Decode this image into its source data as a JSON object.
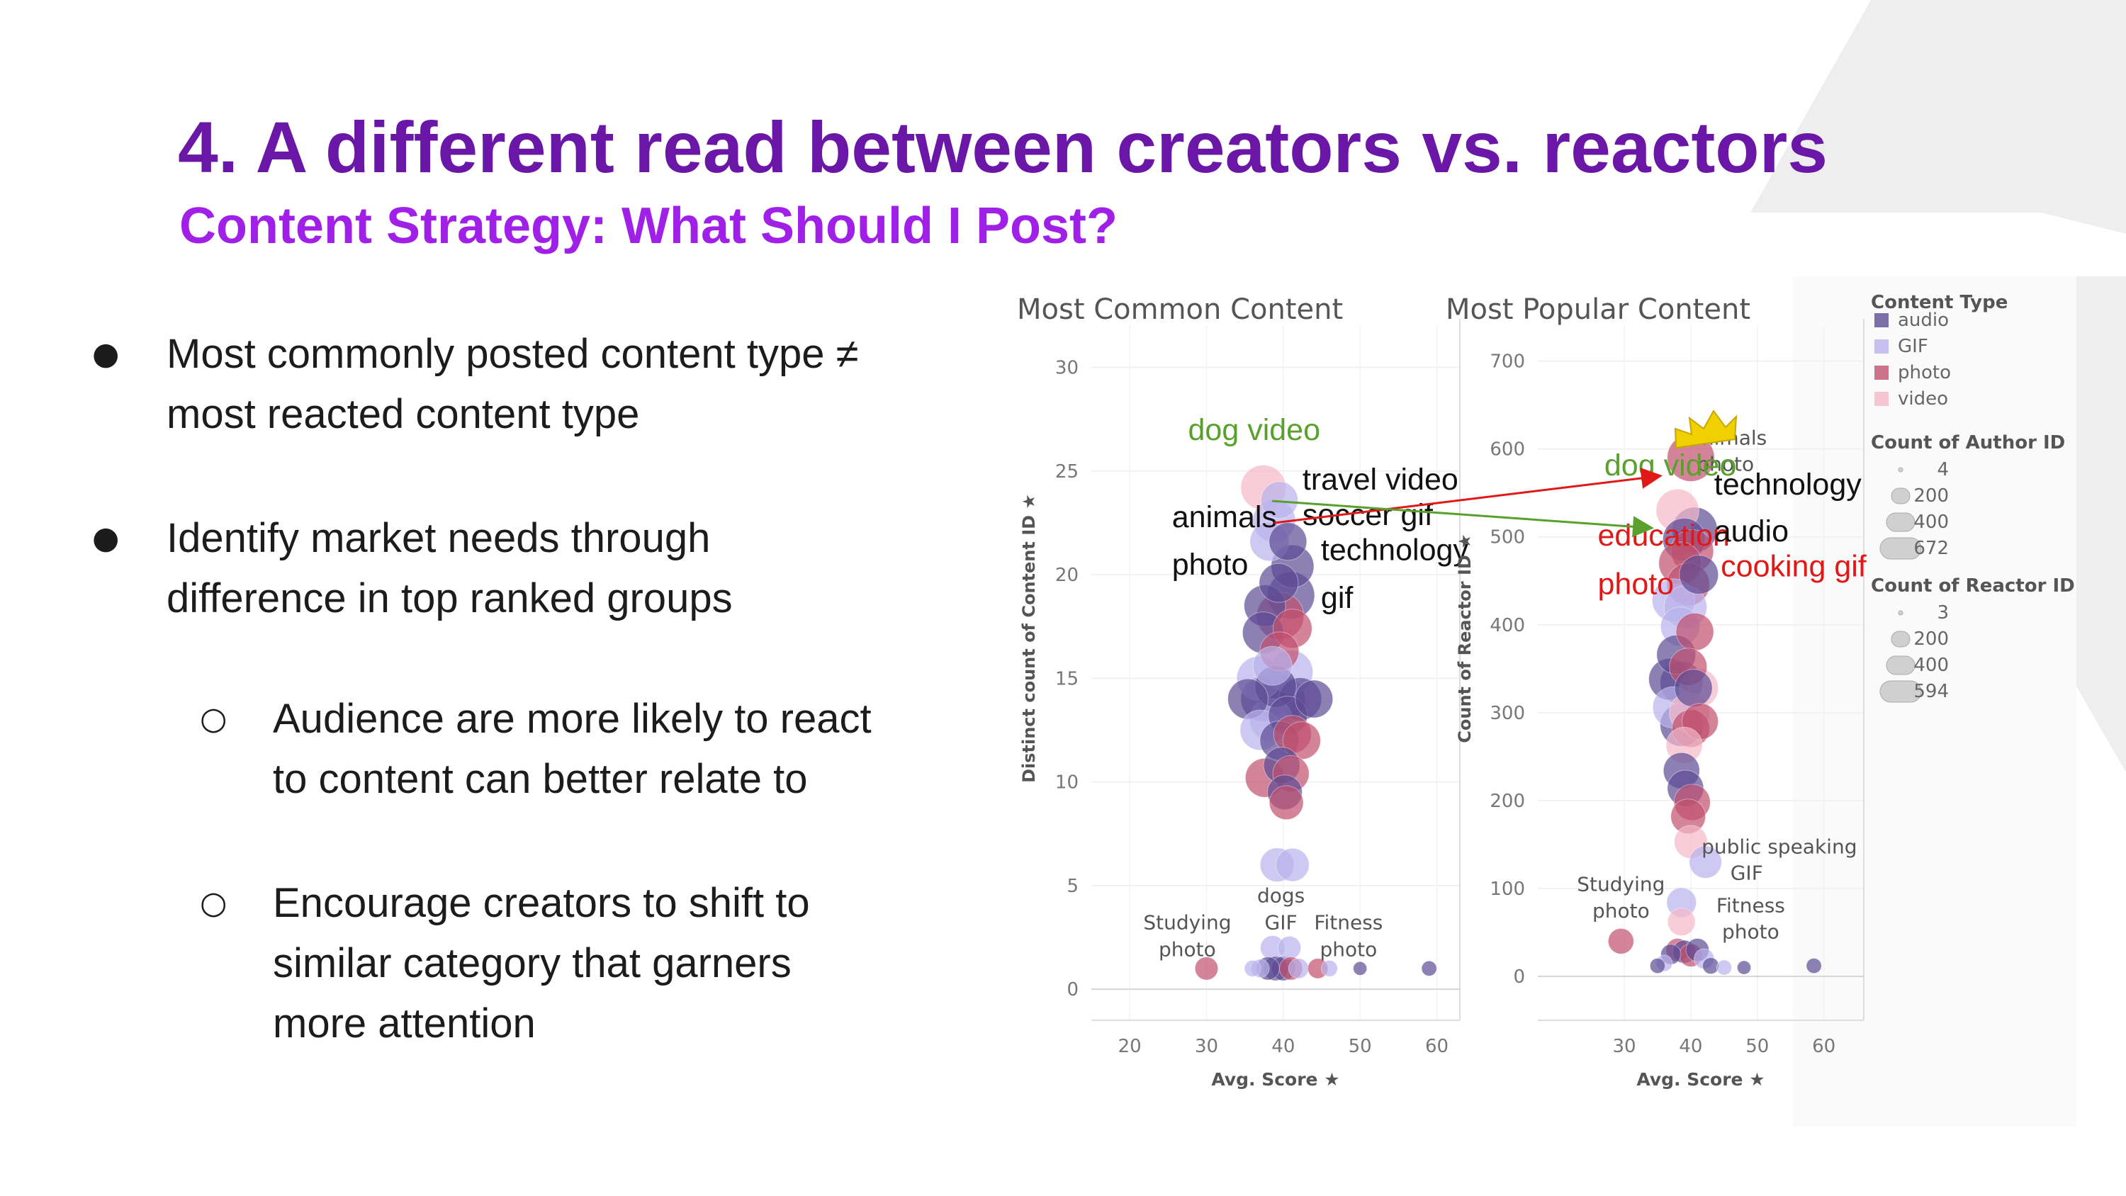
{
  "slide": {
    "title": "4. A different read between creators vs. reactors",
    "subtitle": "Content Strategy: What Should I Post?"
  },
  "bullets": [
    {
      "marker": "●",
      "lines": [
        "Most commonly posted content type ≠",
        "most reacted content type"
      ]
    },
    {
      "marker": "●",
      "lines": [
        "Identify market needs through",
        "difference in top ranked groups"
      ]
    },
    {
      "marker": "○",
      "lines": [
        "Audience are more likely to react",
        "to content can better relate to"
      ]
    },
    {
      "marker": "○",
      "lines": [
        "Encourage creators to shift to",
        "similar category that garners",
        "more attention"
      ]
    }
  ],
  "colors": {
    "title": "#6a16a6",
    "subtitle": "#a020e8",
    "audio": "#5c4c94",
    "gif": "#b9b2ec",
    "photo": "#c0506e",
    "video": "#f5b8c8",
    "annot_green": "#5aa02c",
    "annot_red": "#e01818",
    "crown": "#f0d000"
  },
  "chart_data": [
    {
      "type": "scatter",
      "title": "Most Common Content",
      "xlabel": "Avg. Score",
      "ylabel": "Distinct count of Content ID",
      "xlim": [
        15,
        63
      ],
      "ylim": [
        -1.5,
        32
      ],
      "x_ticks": [
        20,
        30,
        40,
        50,
        60
      ],
      "y_ticks": [
        0,
        5,
        10,
        15,
        20,
        25,
        30
      ],
      "grid": true,
      "size_encoding": "Count of Author ID",
      "points": [
        {
          "x": 37.4,
          "y": 24.2,
          "s": 340,
          "t": "video"
        },
        {
          "x": 39.5,
          "y": 23.6,
          "s": 210,
          "t": "gif"
        },
        {
          "x": 38.8,
          "y": 22.6,
          "s": 300,
          "t": "gif"
        },
        {
          "x": 40.6,
          "y": 21.6,
          "s": 220,
          "t": "audio"
        },
        {
          "x": 38.2,
          "y": 21.6,
          "s": 240,
          "t": "gif"
        },
        {
          "x": 41.2,
          "y": 20.4,
          "s": 300,
          "t": "audio"
        },
        {
          "x": 39.4,
          "y": 19.6,
          "s": 240,
          "t": "audio"
        },
        {
          "x": 41.0,
          "y": 19.0,
          "s": 380,
          "t": "audio"
        },
        {
          "x": 37.6,
          "y": 18.5,
          "s": 280,
          "t": "audio"
        },
        {
          "x": 39.6,
          "y": 18.0,
          "s": 380,
          "t": "photo"
        },
        {
          "x": 41.2,
          "y": 17.4,
          "s": 240,
          "t": "photo"
        },
        {
          "x": 37.4,
          "y": 17.2,
          "s": 280,
          "t": "audio"
        },
        {
          "x": 39.5,
          "y": 16.3,
          "s": 240,
          "t": "photo"
        },
        {
          "x": 38.6,
          "y": 15.6,
          "s": 240,
          "t": "gif"
        },
        {
          "x": 41.0,
          "y": 15.3,
          "s": 320,
          "t": "gif"
        },
        {
          "x": 36.8,
          "y": 15.0,
          "s": 320,
          "t": "gif"
        },
        {
          "x": 39.0,
          "y": 14.6,
          "s": 280,
          "t": "audio"
        },
        {
          "x": 35.4,
          "y": 14.0,
          "s": 260,
          "t": "audio"
        },
        {
          "x": 37.4,
          "y": 14.0,
          "s": 340,
          "t": "audio"
        },
        {
          "x": 39.8,
          "y": 14.0,
          "s": 380,
          "t": "audio"
        },
        {
          "x": 42.2,
          "y": 14.0,
          "s": 300,
          "t": "audio"
        },
        {
          "x": 44.0,
          "y": 14.0,
          "s": 220,
          "t": "audio"
        },
        {
          "x": 38.4,
          "y": 13.0,
          "s": 300,
          "t": "gif"
        },
        {
          "x": 40.6,
          "y": 13.2,
          "s": 240,
          "t": "audio"
        },
        {
          "x": 37.0,
          "y": 12.5,
          "s": 260,
          "t": "gif"
        },
        {
          "x": 39.5,
          "y": 12.0,
          "s": 240,
          "t": "audio"
        },
        {
          "x": 41.2,
          "y": 12.3,
          "s": 220,
          "t": "photo"
        },
        {
          "x": 42.4,
          "y": 12.0,
          "s": 220,
          "t": "photo"
        },
        {
          "x": 39.8,
          "y": 10.8,
          "s": 200,
          "t": "audio"
        },
        {
          "x": 41.0,
          "y": 10.4,
          "s": 200,
          "t": "photo"
        },
        {
          "x": 37.6,
          "y": 10.2,
          "s": 240,
          "t": "photo"
        },
        {
          "x": 40.2,
          "y": 9.5,
          "s": 180,
          "t": "audio"
        },
        {
          "x": 40.4,
          "y": 9.0,
          "s": 170,
          "t": "photo"
        },
        {
          "x": 39.2,
          "y": 6.0,
          "s": 170,
          "t": "gif"
        },
        {
          "x": 41.2,
          "y": 6.0,
          "s": 160,
          "t": "gif"
        },
        {
          "x": 38.6,
          "y": 2.0,
          "s": 70,
          "t": "gif"
        },
        {
          "x": 40.8,
          "y": 2.0,
          "s": 60,
          "t": "gif"
        },
        {
          "x": 30.0,
          "y": 1.0,
          "s": 60,
          "t": "photo"
        },
        {
          "x": 36.0,
          "y": 1.0,
          "s": 20,
          "t": "gif"
        },
        {
          "x": 37.0,
          "y": 1.0,
          "s": 30,
          "t": "gif"
        },
        {
          "x": 38.0,
          "y": 1.0,
          "s": 60,
          "t": "audio"
        },
        {
          "x": 39.0,
          "y": 1.0,
          "s": 70,
          "t": "audio"
        },
        {
          "x": 40.0,
          "y": 1.0,
          "s": 70,
          "t": "audio"
        },
        {
          "x": 41.0,
          "y": 1.0,
          "s": 60,
          "t": "photo"
        },
        {
          "x": 42.0,
          "y": 1.0,
          "s": 40,
          "t": "gif"
        },
        {
          "x": 44.5,
          "y": 1.0,
          "s": 40,
          "t": "photo"
        },
        {
          "x": 46.0,
          "y": 1.0,
          "s": 20,
          "t": "gif"
        },
        {
          "x": 50.0,
          "y": 1.0,
          "s": 10,
          "t": "audio"
        },
        {
          "x": 59.0,
          "y": 1.0,
          "s": 15,
          "t": "audio"
        }
      ],
      "point_labels": [
        {
          "text": "dogs",
          "x": 39.7,
          "y": 4.2
        },
        {
          "text": "GIF",
          "x": 39.7,
          "y": 2.9
        },
        {
          "text": "Studying",
          "x": 27.5,
          "y": 2.9
        },
        {
          "text": "photo",
          "x": 27.5,
          "y": 1.6
        },
        {
          "text": "Fitness",
          "x": 48.5,
          "y": 2.9
        },
        {
          "text": "photo",
          "x": 48.5,
          "y": 1.6
        }
      ],
      "annotations": [
        {
          "text": "dog video",
          "x": 27.6,
          "y": 26.5,
          "color": "green"
        },
        {
          "text": "travel video",
          "x": 42.5,
          "y": 24.1,
          "color": "black"
        },
        {
          "text": "animals",
          "x": 25.5,
          "y": 22.3,
          "color": "black"
        },
        {
          "text": "soccer gif",
          "x": 42.5,
          "y": 22.4,
          "color": "black"
        },
        {
          "text": "technology",
          "x": 44.9,
          "y": 20.7,
          "color": "black"
        },
        {
          "text": "photo",
          "x": 25.5,
          "y": 20.0,
          "color": "black"
        },
        {
          "text": "gif",
          "x": 44.9,
          "y": 18.4,
          "color": "black"
        }
      ]
    },
    {
      "type": "scatter",
      "title": "Most Popular Content",
      "xlabel": "Avg. Score",
      "ylabel": "Count of Reactor ID",
      "xlim": [
        17,
        66
      ],
      "ylim": [
        -50,
        740
      ],
      "x_ticks": [
        30,
        40,
        50,
        60
      ],
      "y_ticks": [
        0,
        100,
        200,
        300,
        400,
        500,
        600,
        700
      ],
      "grid": true,
      "size_encoding": "Count of Reactor ID",
      "points": [
        {
          "x": 40.0,
          "y": 590,
          "s": 380,
          "t": "photo"
        },
        {
          "x": 38.0,
          "y": 530,
          "s": 300,
          "t": "video"
        },
        {
          "x": 40.6,
          "y": 508,
          "s": 340,
          "t": "audio"
        },
        {
          "x": 39.0,
          "y": 497,
          "s": 300,
          "t": "audio"
        },
        {
          "x": 40.2,
          "y": 484,
          "s": 300,
          "t": "photo"
        },
        {
          "x": 38.4,
          "y": 470,
          "s": 300,
          "t": "photo"
        },
        {
          "x": 41.2,
          "y": 457,
          "s": 240,
          "t": "audio"
        },
        {
          "x": 39.6,
          "y": 446,
          "s": 300,
          "t": "photo"
        },
        {
          "x": 37.4,
          "y": 428,
          "s": 300,
          "t": "gif"
        },
        {
          "x": 39.2,
          "y": 420,
          "s": 300,
          "t": "gif"
        },
        {
          "x": 38.4,
          "y": 398,
          "s": 240,
          "t": "gif"
        },
        {
          "x": 40.6,
          "y": 392,
          "s": 220,
          "t": "photo"
        },
        {
          "x": 37.8,
          "y": 366,
          "s": 240,
          "t": "audio"
        },
        {
          "x": 39.6,
          "y": 352,
          "s": 220,
          "t": "photo"
        },
        {
          "x": 36.8,
          "y": 338,
          "s": 280,
          "t": "audio"
        },
        {
          "x": 38.6,
          "y": 334,
          "s": 300,
          "t": "audio"
        },
        {
          "x": 40.4,
          "y": 328,
          "s": 220,
          "t": "audio"
        },
        {
          "x": 41.2,
          "y": 328,
          "s": 240,
          "t": "video"
        },
        {
          "x": 37.4,
          "y": 306,
          "s": 280,
          "t": "gif"
        },
        {
          "x": 39.8,
          "y": 300,
          "s": 260,
          "t": "video"
        },
        {
          "x": 38.6,
          "y": 286,
          "s": 300,
          "t": "audio"
        },
        {
          "x": 40.0,
          "y": 282,
          "s": 220,
          "t": "photo"
        },
        {
          "x": 41.4,
          "y": 290,
          "s": 200,
          "t": "photo"
        },
        {
          "x": 39.0,
          "y": 263,
          "s": 200,
          "t": "video"
        },
        {
          "x": 38.6,
          "y": 234,
          "s": 200,
          "t": "audio"
        },
        {
          "x": 39.2,
          "y": 214,
          "s": 200,
          "t": "audio"
        },
        {
          "x": 40.2,
          "y": 198,
          "s": 200,
          "t": "photo"
        },
        {
          "x": 39.6,
          "y": 182,
          "s": 180,
          "t": "photo"
        },
        {
          "x": 40.0,
          "y": 153,
          "s": 160,
          "t": "video"
        },
        {
          "x": 42.2,
          "y": 130,
          "s": 150,
          "t": "gif"
        },
        {
          "x": 38.6,
          "y": 84,
          "s": 120,
          "t": "gif"
        },
        {
          "x": 38.6,
          "y": 62,
          "s": 100,
          "t": "video"
        },
        {
          "x": 29.5,
          "y": 40,
          "s": 80,
          "t": "photo"
        },
        {
          "x": 36.0,
          "y": 15,
          "s": 20,
          "t": "gif"
        },
        {
          "x": 37.0,
          "y": 25,
          "s": 40,
          "t": "audio"
        },
        {
          "x": 38.0,
          "y": 30,
          "s": 60,
          "t": "photo"
        },
        {
          "x": 39.0,
          "y": 28,
          "s": 60,
          "t": "audio"
        },
        {
          "x": 40.0,
          "y": 24,
          "s": 60,
          "t": "photo"
        },
        {
          "x": 41.0,
          "y": 30,
          "s": 60,
          "t": "audio"
        },
        {
          "x": 42.0,
          "y": 20,
          "s": 40,
          "t": "gif"
        },
        {
          "x": 43.0,
          "y": 12,
          "s": 20,
          "t": "audio"
        },
        {
          "x": 35.0,
          "y": 12,
          "s": 15,
          "t": "audio"
        },
        {
          "x": 45.0,
          "y": 10,
          "s": 15,
          "t": "gif"
        },
        {
          "x": 48.0,
          "y": 10,
          "s": 10,
          "t": "audio"
        },
        {
          "x": 58.5,
          "y": 12,
          "s": 15,
          "t": "audio"
        }
      ],
      "point_labels": [
        {
          "text": "animals",
          "x": 45.6,
          "y": 605
        },
        {
          "text": "photo",
          "x": 45.2,
          "y": 575
        },
        {
          "text": "public speaking",
          "x": 53.3,
          "y": 140
        },
        {
          "text": "GIF",
          "x": 48.4,
          "y": 110
        },
        {
          "text": "Studying",
          "x": 29.5,
          "y": 97
        },
        {
          "text": "photo",
          "x": 29.5,
          "y": 67
        },
        {
          "text": "Fitness",
          "x": 49.0,
          "y": 73
        },
        {
          "text": "photo",
          "x": 49.0,
          "y": 43
        }
      ],
      "annotations": [
        {
          "text": "dog video",
          "x": 27.0,
          "y": 570,
          "color": "green"
        },
        {
          "text": "technology",
          "x": 43.5,
          "y": 548,
          "color": "black"
        },
        {
          "text": "education",
          "x": 26.0,
          "y": 490,
          "color": "red"
        },
        {
          "text": "audio",
          "x": 43.5,
          "y": 495,
          "color": "black"
        },
        {
          "text": "cooking gif",
          "x": 44.5,
          "y": 455,
          "color": "red"
        },
        {
          "text": "photo",
          "x": 26.0,
          "y": 435,
          "color": "red"
        }
      ]
    }
  ],
  "legend": {
    "content_type_title": "Content Type",
    "content_types": [
      {
        "key": "audio",
        "label": "audio"
      },
      {
        "key": "gif",
        "label": "GIF"
      },
      {
        "key": "photo",
        "label": "photo"
      },
      {
        "key": "video",
        "label": "video"
      }
    ],
    "author_title": "Count of Author ID",
    "author_sizes": [
      "4",
      "200",
      "400",
      "672"
    ],
    "reactor_title": "Count of Reactor ID",
    "reactor_sizes": [
      "3",
      "200",
      "400",
      "594"
    ]
  }
}
